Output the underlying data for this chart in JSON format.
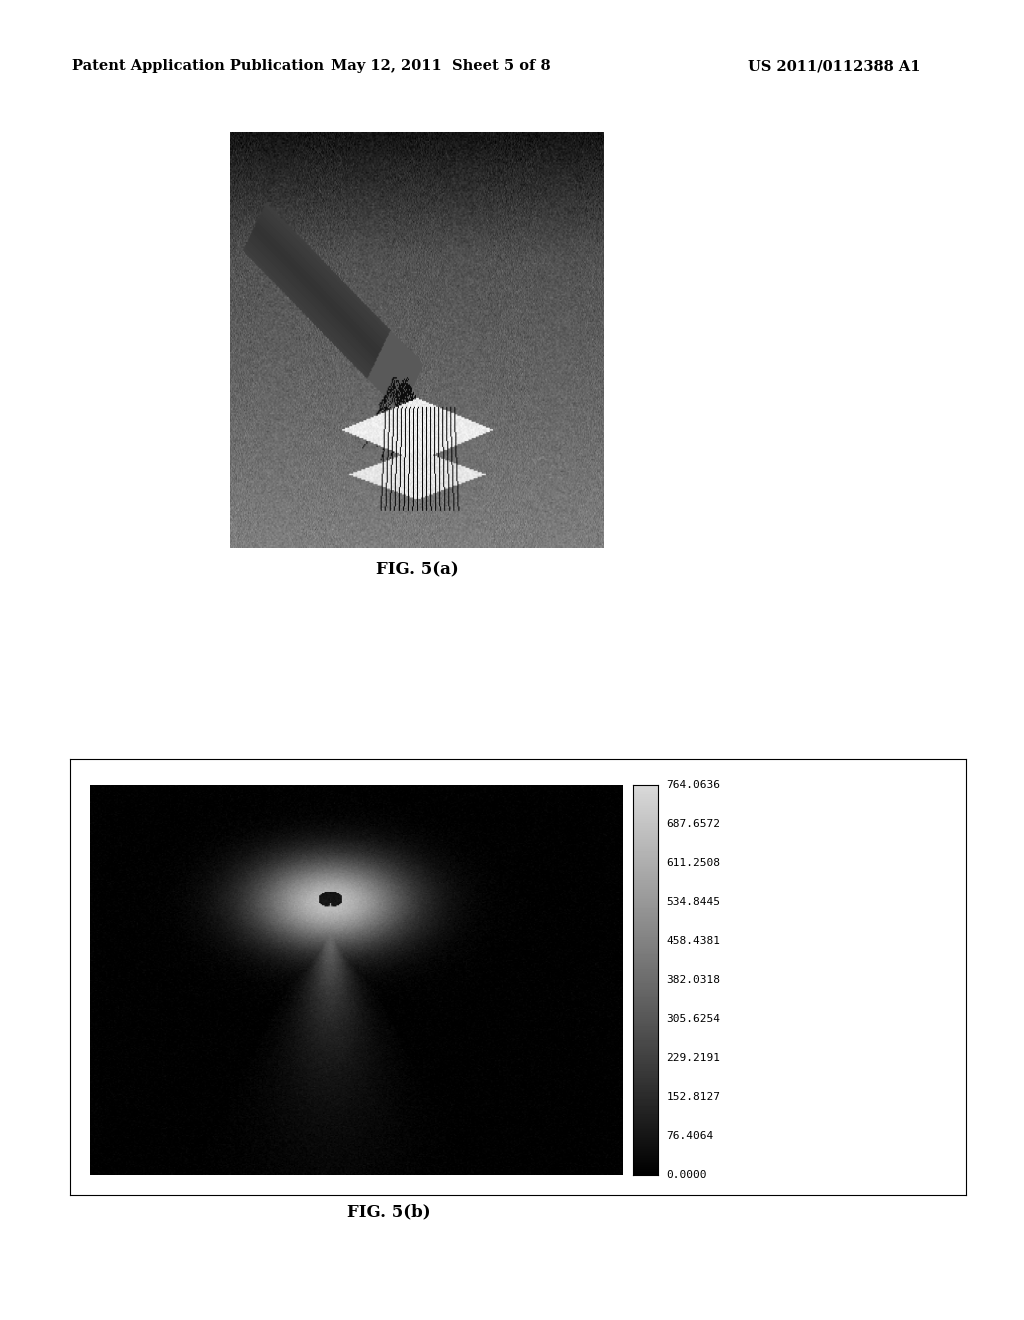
{
  "page_title_left": "Patent Application Publication",
  "page_title_center": "May 12, 2011  Sheet 5 of 8",
  "page_title_right": "US 2011/0112388 A1",
  "fig_a_caption": "FIG. 5(a)",
  "fig_b_caption": "FIG. 5(b)",
  "colorbar_labels": [
    "764.0636",
    "687.6572",
    "611.2508",
    "534.8445",
    "458.4381",
    "382.0318",
    "305.6254",
    "229.2191",
    "152.8127",
    "76.4064",
    "0.0000"
  ],
  "background_color": "#ffffff",
  "header_font_size": 10.5,
  "caption_font_size": 12
}
